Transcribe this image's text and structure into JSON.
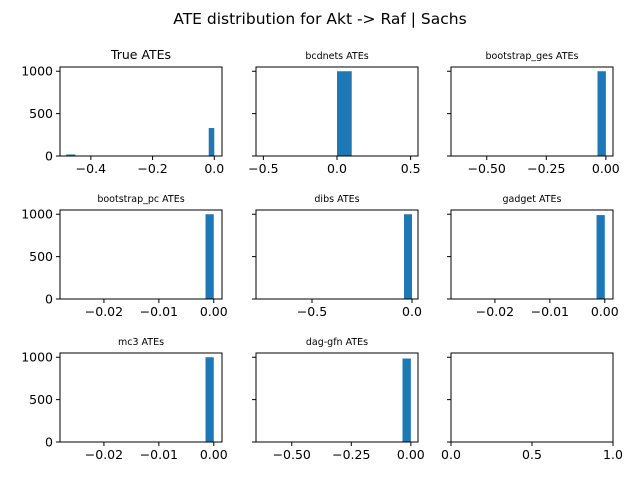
{
  "figure": {
    "suptitle": "ATE distribution for Akt -> Raf | Sachs",
    "bar_color": "#1f77b4"
  },
  "chart_data": [
    {
      "type": "bar",
      "title": "True ATEs",
      "title_size": "lg",
      "xlim": [
        -0.5,
        0.025
      ],
      "ylim": [
        0,
        1050
      ],
      "xticks": [
        -0.4,
        -0.2,
        0.0
      ],
      "xtick_labels": [
        "−0.4",
        "−0.2",
        "0.0"
      ],
      "yticks": [
        0,
        500,
        1000
      ],
      "ytick_labels": [
        "0",
        "500",
        "1000"
      ],
      "show_ytick_labels": true,
      "bars": [
        {
          "x0": -0.48,
          "x1": -0.45,
          "value": 18
        },
        {
          "x0": -0.018,
          "x1": 0.0,
          "value": 330
        }
      ]
    },
    {
      "type": "bar",
      "title": "bcdnets ATEs",
      "title_size": "sm",
      "xlim": [
        -0.55,
        0.55
      ],
      "ylim": [
        0,
        1050
      ],
      "xticks": [
        -0.5,
        0.0,
        0.5
      ],
      "xtick_labels": [
        "−0.5",
        "0.0",
        "0.5"
      ],
      "yticks": [
        0,
        500,
        1000
      ],
      "ytick_labels": [
        "0",
        "500",
        "1000"
      ],
      "show_ytick_labels": false,
      "bars": [
        {
          "x0": 0.0,
          "x1": 0.1,
          "value": 1000
        }
      ]
    },
    {
      "type": "bar",
      "title": "bootstrap_ges ATEs",
      "title_size": "sm",
      "xlim": [
        -0.65,
        0.03
      ],
      "ylim": [
        0,
        1050
      ],
      "xticks": [
        -0.5,
        -0.25,
        0.0
      ],
      "xtick_labels": [
        "−0.50",
        "−0.25",
        "0.00"
      ],
      "yticks": [
        0,
        500,
        1000
      ],
      "ytick_labels": [
        "0",
        "500",
        "1000"
      ],
      "show_ytick_labels": false,
      "bars": [
        {
          "x0": -0.035,
          "x1": 0.0,
          "value": 1000
        }
      ]
    },
    {
      "type": "bar",
      "title": "bootstrap_pc ATEs",
      "title_size": "sm",
      "xlim": [
        -0.028,
        0.0015
      ],
      "ylim": [
        0,
        1050
      ],
      "xticks": [
        -0.02,
        -0.01,
        0.0
      ],
      "xtick_labels": [
        "−0.02",
        "−0.01",
        "0.00"
      ],
      "yticks": [
        0,
        500,
        1000
      ],
      "ytick_labels": [
        "0",
        "500",
        "1000"
      ],
      "show_ytick_labels": true,
      "bars": [
        {
          "x0": -0.0015,
          "x1": 0.0,
          "value": 1000
        }
      ]
    },
    {
      "type": "bar",
      "title": "dibs ATEs",
      "title_size": "sm",
      "xlim": [
        -0.78,
        0.03
      ],
      "ylim": [
        0,
        1050
      ],
      "xticks": [
        -0.5,
        0.0
      ],
      "xtick_labels": [
        "−0.5",
        "0.0"
      ],
      "yticks": [
        0,
        500,
        1000
      ],
      "ytick_labels": [
        "0",
        "500",
        "1000"
      ],
      "show_ytick_labels": false,
      "bars": [
        {
          "x0": -0.04,
          "x1": 0.0,
          "value": 1000
        }
      ]
    },
    {
      "type": "bar",
      "title": "gadget ATEs",
      "title_size": "sm",
      "xlim": [
        -0.028,
        0.0015
      ],
      "ylim": [
        0,
        1050
      ],
      "xticks": [
        -0.02,
        -0.01,
        0.0
      ],
      "xtick_labels": [
        "−0.02",
        "−0.01",
        "0.00"
      ],
      "yticks": [
        0,
        500,
        1000
      ],
      "ytick_labels": [
        "0",
        "500",
        "1000"
      ],
      "show_ytick_labels": false,
      "bars": [
        {
          "x0": -0.0015,
          "x1": 0.0,
          "value": 990
        }
      ]
    },
    {
      "type": "bar",
      "title": "mc3 ATEs",
      "title_size": "sm",
      "xlim": [
        -0.028,
        0.0015
      ],
      "ylim": [
        0,
        1050
      ],
      "xticks": [
        -0.02,
        -0.01,
        0.0
      ],
      "xtick_labels": [
        "−0.02",
        "−0.01",
        "0.00"
      ],
      "yticks": [
        0,
        500,
        1000
      ],
      "ytick_labels": [
        "0",
        "500",
        "1000"
      ],
      "show_ytick_labels": true,
      "bars": [
        {
          "x0": -0.0015,
          "x1": 0.0,
          "value": 1000
        }
      ]
    },
    {
      "type": "bar",
      "title": "dag-gfn ATEs",
      "title_size": "sm",
      "xlim": [
        -0.65,
        0.03
      ],
      "ylim": [
        0,
        1050
      ],
      "xticks": [
        -0.5,
        -0.25,
        0.0
      ],
      "xtick_labels": [
        "−0.50",
        "−0.25",
        "0.00"
      ],
      "yticks": [
        0,
        500,
        1000
      ],
      "ytick_labels": [
        "0",
        "500",
        "1000"
      ],
      "show_ytick_labels": false,
      "bars": [
        {
          "x0": -0.035,
          "x1": 0.0,
          "value": 985
        }
      ]
    },
    {
      "type": "bar",
      "title": "",
      "title_size": "sm",
      "xlim": [
        0.0,
        1.0
      ],
      "ylim": [
        0,
        1050
      ],
      "xticks": [
        0.0,
        0.5,
        1.0
      ],
      "xtick_labels": [
        "0.0",
        "0.5",
        "1.0"
      ],
      "yticks": [
        0,
        500,
        1000
      ],
      "ytick_labels": [
        "0",
        "500",
        "1000"
      ],
      "show_ytick_labels": false,
      "bars": []
    }
  ]
}
